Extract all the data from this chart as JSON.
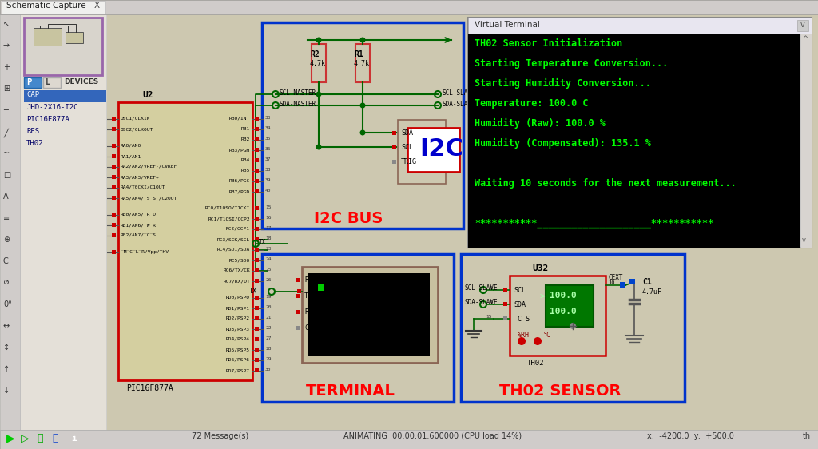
{
  "bg_color": "#cdc8b0",
  "grid_color": "#b8b2a0",
  "terminal_title": "Virtual Terminal",
  "terminal_lines": [
    "TH02 Sensor Initialization",
    "Starting Temperature Conversion...",
    "Starting Humidity Conversion...",
    "Temperature: 100.0 C",
    "Humidity (Raw): 100.0 %",
    "Humidity (Compensated): 135.1 %",
    "",
    "Waiting 10 seconds for the next measurement...",
    "",
    "***********____________________***********"
  ],
  "terminal_bg": "#000000",
  "terminal_text_color": "#00ff00",
  "status_bar_text": "72 Message(s)",
  "status_bar_anim": "ANIMATING  00:00:01.600000 (CPU load 14%)",
  "status_bar_coords": "x:  -4200.0  y:  +500.0",
  "label_i2c_bus": "I2C BUS",
  "label_terminal": "TERMINAL",
  "label_th02_sensor": "TH02 SENSOR",
  "label_color": "#ff0000",
  "blue_box_color": "#0033cc",
  "pic_border_color": "#cc0000",
  "pic_fill_color": "#d4cfa0",
  "wire_color": "#006600",
  "junction_color": "#006600"
}
